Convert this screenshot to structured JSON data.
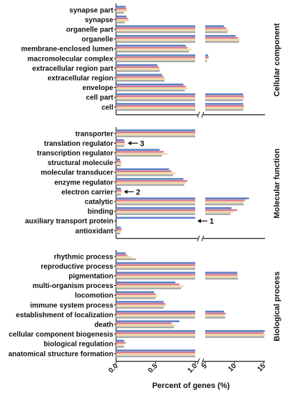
{
  "chart_data": {
    "type": "bar",
    "orientation": "horizontal",
    "axis_break": true,
    "xlabel": "Percent of genes (%)",
    "xticks": [
      "0.0",
      "0.5",
      "1.0",
      "5",
      "10",
      "15"
    ],
    "colors": [
      "#5b7fc4",
      "#d97b8e",
      "#f1d9a4",
      "#a9a9a9"
    ],
    "panels": [
      {
        "label": "Cellular component",
        "categories": [
          "synapse part",
          "synapse",
          "organelle part",
          "organelle",
          "membrane-enclosed lumen",
          "macromolecular complex",
          "extracellular region part",
          "extracellular region",
          "envelope",
          "cell part",
          "cell"
        ],
        "series": [
          {
            "values": [
              0.12,
              0.13,
              8.2,
              10.2,
              0.88,
              5.5,
              0.52,
              0.58,
              0.85,
              11.5,
              11.5
            ]
          },
          {
            "values": [
              0.13,
              0.15,
              8.6,
              10.6,
              0.9,
              5.6,
              0.54,
              0.6,
              0.88,
              11.6,
              11.6
            ]
          },
          {
            "values": [
              0.14,
              0.16,
              9.0,
              10.9,
              0.95,
              5.4,
              0.56,
              0.62,
              0.9,
              11.7,
              11.7
            ]
          },
          {
            "values": [
              0.1,
              0.11,
              8.8,
              10.8,
              0.92,
              5.3,
              0.55,
              0.61,
              0.87,
              11.5,
              11.5
            ]
          }
        ],
        "annotations": []
      },
      {
        "label": "Molecular function",
        "categories": [
          "transporter",
          "translation regulator",
          "transcription regulator",
          "structural molecule",
          "molecular transducer",
          "enzyme regulator",
          "electron carrier",
          "catalytic",
          "binding",
          "auxiliary transport protein",
          "antioxidant"
        ],
        "series": [
          {
            "values": [
              1.0,
              0.1,
              0.55,
              0.05,
              0.67,
              0.85,
              0.06,
              12.5,
              9.5,
              1.0,
              0.06
            ]
          },
          {
            "values": [
              1.0,
              0.11,
              0.6,
              0.06,
              0.7,
              0.9,
              0.07,
              11.8,
              10.5,
              0.0,
              0.07
            ]
          },
          {
            "values": [
              1.0,
              0.12,
              0.65,
              0.07,
              0.75,
              0.88,
              0.07,
              11.5,
              9.8,
              0.0,
              0.06
            ]
          },
          {
            "values": [
              1.0,
              0.1,
              0.58,
              0.06,
              0.72,
              0.86,
              0.06,
              11.6,
              9.3,
              0.0,
              0.05
            ]
          }
        ],
        "annotations": [
          {
            "category": "translation regulator",
            "text": "3"
          },
          {
            "category": "electron carrier",
            "text": "2"
          },
          {
            "category": "auxiliary transport protein",
            "text": "1"
          }
        ]
      },
      {
        "label": "Biological process",
        "categories": [
          "rhythmic process",
          "reproductive process",
          "pigmentation",
          "multi-organism process",
          "locomotion",
          "immune system process",
          "establishment of localization",
          "death",
          "cellular component biogenesis",
          "biological regulation",
          "anatomical structure formation"
        ],
        "series": [
          {
            "values": [
              0.12,
              1.0,
              10.5,
              0.75,
              0.48,
              0.6,
              8.2,
              0.8,
              15.2,
              0.1,
              1.0
            ]
          },
          {
            "values": [
              0.14,
              1.0,
              10.5,
              0.8,
              0.5,
              0.62,
              8.5,
              0.7,
              15.0,
              0.12,
              1.0
            ]
          },
          {
            "values": [
              0.2,
              1.0,
              10.6,
              0.85,
              0.52,
              0.63,
              8.3,
              0.75,
              15.3,
              0.09,
              1.0
            ]
          },
          {
            "values": [
              0.25,
              1.0,
              10.6,
              0.82,
              0.5,
              0.6,
              8.4,
              0.73,
              15.1,
              0.1,
              1.0
            ]
          }
        ],
        "annotations": []
      }
    ]
  }
}
